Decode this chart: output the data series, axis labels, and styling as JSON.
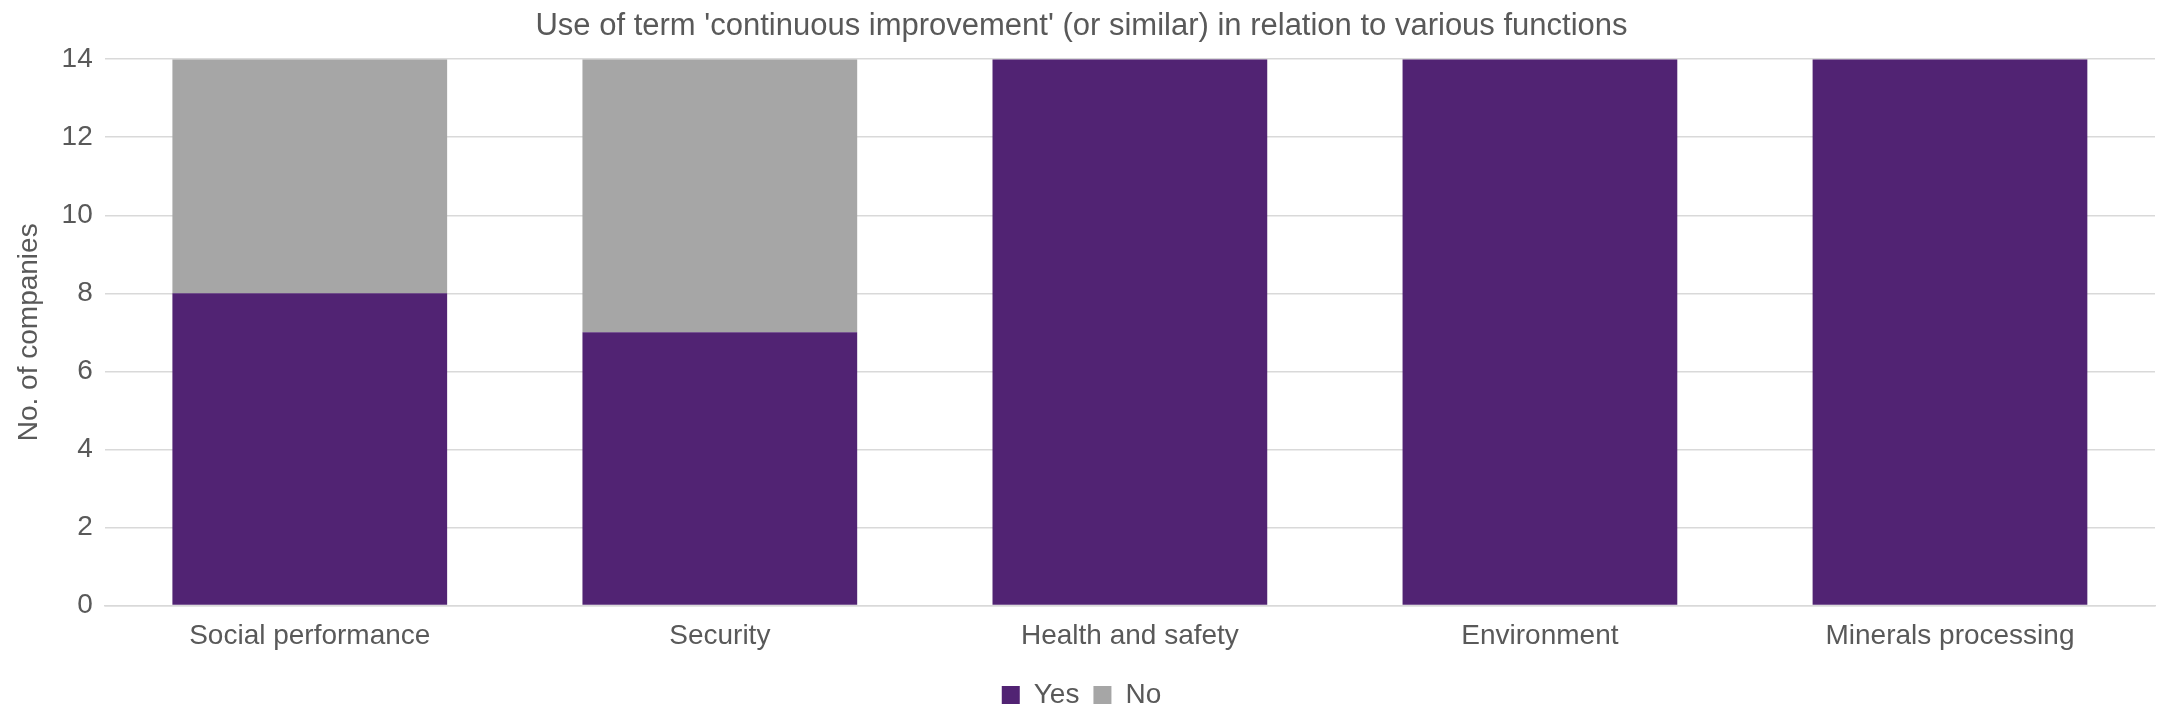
{
  "chart_data": {
    "type": "bar",
    "title": "Use of term 'continuous improvement' (or similar) in relation to various functions",
    "ylabel": "No. of companies",
    "categories": [
      "Social performance",
      "Security",
      "Health and safety",
      "Environment",
      "Minerals processing"
    ],
    "series": [
      {
        "name": "Yes",
        "color": "#512373",
        "values": [
          8,
          7,
          14,
          14,
          14
        ]
      },
      {
        "name": "No",
        "color": "#a6a6a6",
        "values": [
          6,
          7,
          0,
          0,
          0
        ]
      }
    ],
    "stacked": true,
    "ylim": [
      0,
      14
    ],
    "yticks": [
      0,
      2,
      4,
      6,
      8,
      10,
      12,
      14
    ],
    "grid": "y",
    "legend": "bottom"
  }
}
